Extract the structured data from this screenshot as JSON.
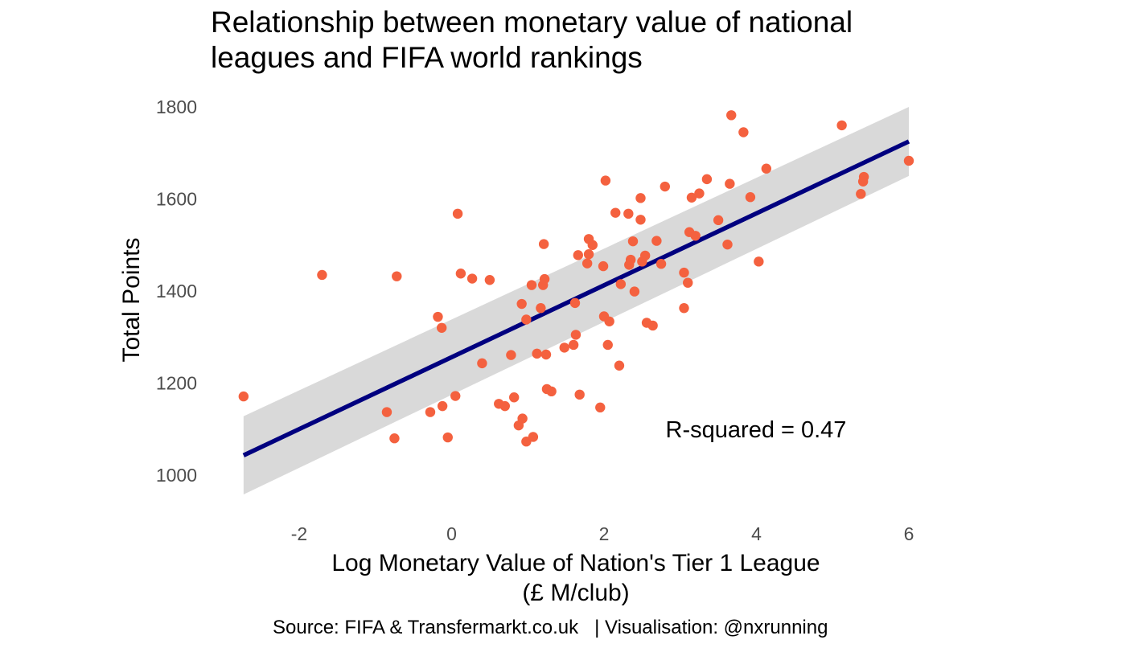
{
  "chart_data": {
    "type": "scatter",
    "title": "Relationship between monetary value of national leagues and FIFA world rankings",
    "title_lines": [
      "Relationship between monetary value of national",
      "leagues and FIFA world rankings"
    ],
    "xlabel": "Log Monetary Value of Nation's Tier 1 League",
    "xlabel_line2": "(£ M/club)",
    "ylabel": "Total Points",
    "caption": "Source: FIFA & Transfermarkt.co.uk   | Visualisation: @nxrunning",
    "annotation": "R-squared = 0.47",
    "xlim": [
      -2.75,
      6.0
    ],
    "ylim": [
      1000,
      1800
    ],
    "x_ticks": [
      -2,
      0,
      2,
      4,
      6
    ],
    "x_tick_labels": [
      "-2",
      "0",
      "2",
      "4",
      "6"
    ],
    "y_ticks": [
      1000,
      1200,
      1400,
      1600,
      1800
    ],
    "y_tick_labels": [
      "1000",
      "1200",
      "1400",
      "1600",
      "1800"
    ],
    "grid": false,
    "point_color": "#f4613f",
    "line_color": "#00007f",
    "band_color": "#d9d9d9",
    "regression": {
      "x": [
        -2.73,
        6.0
      ],
      "y": [
        1043,
        1725
      ],
      "ci_upper": [
        1128,
        1800
      ],
      "ci_lower": [
        958,
        1650
      ]
    },
    "points": [
      [
        -2.73,
        1171
      ],
      [
        -1.7,
        1435
      ],
      [
        -0.72,
        1432
      ],
      [
        -0.85,
        1137
      ],
      [
        -0.75,
        1080
      ],
      [
        -0.28,
        1137
      ],
      [
        -0.18,
        1344
      ],
      [
        -0.13,
        1320
      ],
      [
        -0.12,
        1150
      ],
      [
        -0.05,
        1082
      ],
      [
        0.05,
        1172
      ],
      [
        0.08,
        1568
      ],
      [
        0.12,
        1438
      ],
      [
        0.27,
        1427
      ],
      [
        0.4,
        1243
      ],
      [
        0.5,
        1424
      ],
      [
        0.62,
        1155
      ],
      [
        0.7,
        1150
      ],
      [
        0.78,
        1261
      ],
      [
        0.82,
        1169
      ],
      [
        0.88,
        1108
      ],
      [
        0.92,
        1372
      ],
      [
        0.93,
        1123
      ],
      [
        0.98,
        1338
      ],
      [
        0.98,
        1073
      ],
      [
        1.05,
        1413
      ],
      [
        1.07,
        1083
      ],
      [
        1.12,
        1264
      ],
      [
        1.17,
        1363
      ],
      [
        1.2,
        1413
      ],
      [
        1.22,
        1426
      ],
      [
        1.21,
        1502
      ],
      [
        1.24,
        1262
      ],
      [
        1.25,
        1187
      ],
      [
        1.31,
        1182
      ],
      [
        1.48,
        1277
      ],
      [
        1.6,
        1283
      ],
      [
        1.62,
        1374
      ],
      [
        1.63,
        1305
      ],
      [
        1.66,
        1478
      ],
      [
        1.68,
        1175
      ],
      [
        1.78,
        1460
      ],
      [
        1.8,
        1480
      ],
      [
        1.8,
        1513
      ],
      [
        1.85,
        1500
      ],
      [
        1.95,
        1147
      ],
      [
        1.99,
        1454
      ],
      [
        2.0,
        1345
      ],
      [
        2.02,
        1640
      ],
      [
        2.05,
        1283
      ],
      [
        2.07,
        1334
      ],
      [
        2.15,
        1570
      ],
      [
        2.2,
        1238
      ],
      [
        2.22,
        1415
      ],
      [
        2.32,
        1568
      ],
      [
        2.33,
        1457
      ],
      [
        2.35,
        1468
      ],
      [
        2.38,
        1508
      ],
      [
        2.4,
        1399
      ],
      [
        2.48,
        1602
      ],
      [
        2.48,
        1555
      ],
      [
        2.5,
        1464
      ],
      [
        2.54,
        1477
      ],
      [
        2.56,
        1331
      ],
      [
        2.64,
        1325
      ],
      [
        2.69,
        1509
      ],
      [
        2.75,
        1459
      ],
      [
        2.8,
        1627
      ],
      [
        3.05,
        1440
      ],
      [
        3.05,
        1363
      ],
      [
        3.1,
        1418
      ],
      [
        3.12,
        1528
      ],
      [
        3.15,
        1603
      ],
      [
        3.2,
        1520
      ],
      [
        3.25,
        1612
      ],
      [
        3.35,
        1643
      ],
      [
        3.5,
        1554
      ],
      [
        3.62,
        1501
      ],
      [
        3.65,
        1633
      ],
      [
        3.67,
        1782
      ],
      [
        3.83,
        1745
      ],
      [
        3.92,
        1604
      ],
      [
        4.03,
        1464
      ],
      [
        4.13,
        1666
      ],
      [
        5.12,
        1760
      ],
      [
        5.37,
        1611
      ],
      [
        5.4,
        1638
      ],
      [
        5.41,
        1648
      ],
      [
        6.0,
        1683
      ]
    ]
  }
}
